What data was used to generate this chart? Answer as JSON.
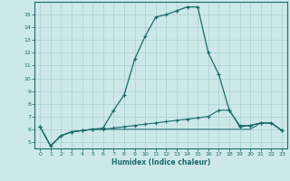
{
  "xlabel": "Humidex (Indice chaleur)",
  "xlim": [
    -0.5,
    23.5
  ],
  "ylim": [
    4.5,
    16.0
  ],
  "yticks": [
    5,
    6,
    7,
    8,
    9,
    10,
    11,
    12,
    13,
    14,
    15
  ],
  "xticks": [
    0,
    1,
    2,
    3,
    4,
    5,
    6,
    7,
    8,
    9,
    10,
    11,
    12,
    13,
    14,
    15,
    16,
    17,
    18,
    19,
    20,
    21,
    22,
    23
  ],
  "background_color": "#cde8e8",
  "grid_color": "#aacfcf",
  "line_color": "#1a6b6b",
  "series1_x": [
    0,
    1,
    2,
    3,
    4,
    5,
    6,
    7,
    8,
    9,
    10,
    11,
    12,
    13,
    14,
    15,
    16,
    17,
    18,
    19,
    20,
    21,
    22,
    23
  ],
  "series1_y": [
    6.2,
    4.7,
    5.5,
    5.8,
    5.9,
    6.0,
    6.1,
    7.5,
    8.7,
    11.5,
    13.3,
    14.8,
    15.0,
    15.3,
    15.6,
    15.6,
    12.0,
    10.3,
    7.5,
    6.2,
    6.3,
    6.5,
    6.5,
    5.9
  ],
  "series2_x": [
    0,
    1,
    2,
    3,
    4,
    5,
    6,
    7,
    8,
    9,
    10,
    11,
    12,
    13,
    14,
    15,
    16,
    17,
    18,
    19,
    20,
    21,
    22,
    23
  ],
  "series2_y": [
    6.2,
    4.7,
    5.5,
    5.8,
    5.9,
    6.0,
    6.0,
    6.1,
    6.2,
    6.3,
    6.4,
    6.5,
    6.6,
    6.7,
    6.8,
    6.9,
    7.0,
    7.5,
    7.5,
    6.3,
    6.3,
    6.5,
    6.5,
    5.9
  ],
  "series3_x": [
    0,
    1,
    2,
    3,
    4,
    5,
    6,
    7,
    8,
    9,
    10,
    11,
    12,
    13,
    14,
    15,
    16,
    17,
    18,
    19,
    20,
    21,
    22,
    23
  ],
  "series3_y": [
    6.2,
    4.7,
    5.5,
    5.8,
    5.9,
    6.0,
    6.0,
    6.0,
    6.0,
    6.0,
    6.0,
    6.0,
    6.0,
    6.0,
    6.0,
    6.0,
    6.0,
    6.0,
    6.0,
    6.0,
    6.0,
    6.5,
    6.5,
    5.9
  ]
}
